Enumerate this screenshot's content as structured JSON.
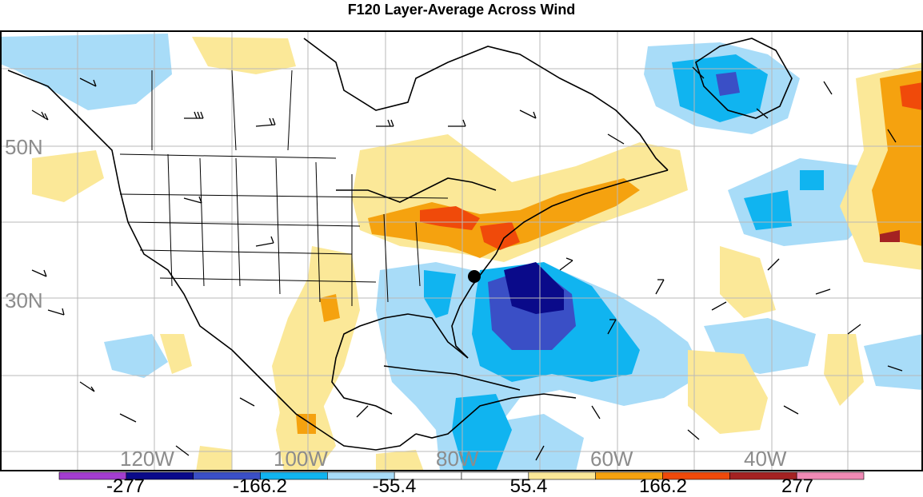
{
  "title": "F120 Layer-Average Across Wind",
  "lat_labels": [
    "50N",
    "30N"
  ],
  "lon_labels": [
    "120W",
    "100W",
    "80W",
    "60W",
    "40W"
  ],
  "colorbar": {
    "tick_labels": [
      "-277",
      "-166.2",
      "-55.4",
      "55.4",
      "166.2",
      "277"
    ],
    "colors": [
      "#a33dd0",
      "#0a0a8a",
      "#3a4fc6",
      "#10b4f0",
      "#a8dcf8",
      "#ffffff",
      "#ffffff",
      "#fbe898",
      "#f5a20f",
      "#f04a0a",
      "#a42222",
      "#f08ab5"
    ]
  },
  "marker": "storm-center"
}
